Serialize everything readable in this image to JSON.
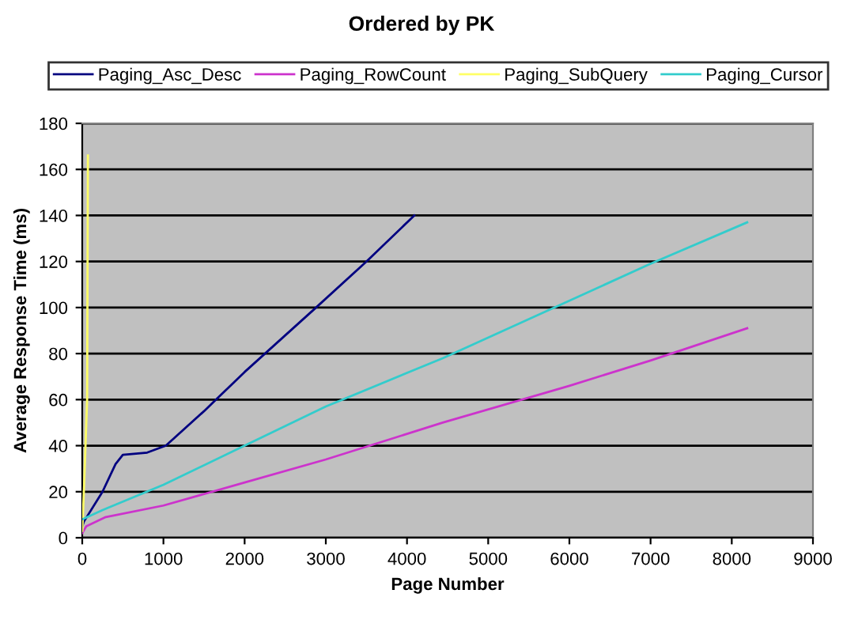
{
  "chart_data": {
    "type": "line",
    "title": "Ordered by PK",
    "xlabel": "Page Number",
    "ylabel": "Average Response Time (ms)",
    "xlim": [
      0,
      9000
    ],
    "xticks": [
      0,
      1000,
      2000,
      3000,
      4000,
      5000,
      6000,
      7000,
      8000,
      9000
    ],
    "ylim": [
      0,
      180
    ],
    "yticks": [
      0,
      20,
      40,
      60,
      80,
      100,
      120,
      140,
      160,
      180
    ],
    "grid": "y",
    "legend": "top",
    "marker": "none",
    "line_style": "solid",
    "series": [
      {
        "name": "Paging_Asc_Desc",
        "color": "#000080",
        "x": [
          0,
          20,
          250,
          410,
          500,
          800,
          1030,
          1500,
          2000,
          2880,
          3500,
          4090
        ],
        "values": [
          5,
          7,
          20,
          32,
          36,
          37,
          40,
          55,
          72,
          100,
          120,
          140
        ]
      },
      {
        "name": "Paging_RowCount",
        "color": "#cc33cc",
        "x": [
          0,
          50,
          290,
          1000,
          2000,
          3000,
          4440,
          6000,
          7000,
          8190
        ],
        "values": [
          2,
          5,
          9,
          14,
          24,
          34,
          50,
          66,
          77,
          91
        ]
      },
      {
        "name": "Paging_SubQuery",
        "color": "#ffff66",
        "x": [
          0,
          20,
          60,
          70
        ],
        "values": [
          3,
          20,
          60,
          166
        ]
      },
      {
        "name": "Paging_Cursor",
        "color": "#33cccc",
        "x": [
          0,
          250,
          1000,
          2000,
          3000,
          4440,
          6000,
          7000,
          8190
        ],
        "values": [
          8,
          12,
          23,
          40,
          57,
          78,
          103,
          119,
          137
        ]
      }
    ]
  }
}
